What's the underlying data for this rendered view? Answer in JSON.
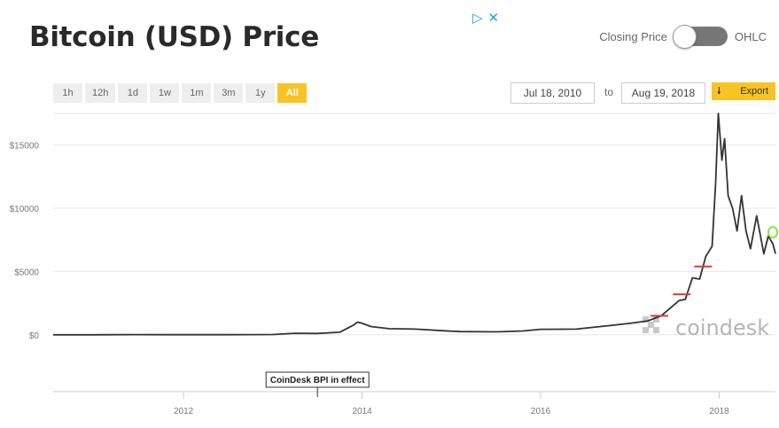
{
  "header": {
    "title": "Bitcoin (USD) Price",
    "closing_label": "Closing Price",
    "ohlc_label": "OHLC"
  },
  "ad": {
    "play_icon": "adchoices-play-icon",
    "close_icon": "close-icon",
    "play_glyph": "▷",
    "close_glyph": "✕"
  },
  "range_buttons": [
    "1h",
    "12h",
    "1d",
    "1w",
    "1m",
    "3m",
    "1y",
    "All"
  ],
  "active_range": "All",
  "date_range": {
    "from": "Jul 18, 2010",
    "to_label": "to",
    "to": "Aug 19, 2018"
  },
  "export": {
    "label": "Export",
    "icon": "download-arrow-icon",
    "glyph": "🠗"
  },
  "watermark": "coindesk",
  "colors": {
    "accent": "#f7c325",
    "line": "#333333",
    "marker": "#e53935",
    "highlight": "#8fe04f"
  },
  "chart_data": {
    "type": "line",
    "title": "Bitcoin (USD) Price",
    "xlabel": "",
    "ylabel": "",
    "xlim": [
      2010.54,
      2018.63
    ],
    "ylim": [
      -4500,
      17500
    ],
    "y_ticks": [
      0,
      5000,
      10000,
      15000
    ],
    "y_tick_labels": [
      "$0",
      "$5000",
      "$10000",
      "$15000"
    ],
    "x_ticks": [
      2012,
      2014,
      2016,
      2018
    ],
    "x_tick_labels": [
      "2012",
      "2014",
      "2016",
      "2018"
    ],
    "grid": true,
    "legend": "none",
    "series": [
      {
        "x": [
          2010.54,
          2011.0,
          2011.45,
          2011.8,
          2012.5,
          2013.0,
          2013.25,
          2013.5,
          2013.75,
          2013.9,
          2013.95,
          2014.0,
          2014.1,
          2014.3,
          2014.6,
          2014.9,
          2015.1,
          2015.5,
          2015.8,
          2016.0,
          2016.4,
          2016.8,
          2017.0,
          2017.2,
          2017.35,
          2017.45,
          2017.55,
          2017.62,
          2017.7,
          2017.78,
          2017.85,
          2017.92,
          2017.96,
          2017.99,
          2018.03,
          2018.06,
          2018.1,
          2018.15,
          2018.2,
          2018.25,
          2018.3,
          2018.35,
          2018.42,
          2018.5,
          2018.55,
          2018.6,
          2018.63
        ],
        "values": [
          0,
          1,
          15,
          5,
          8,
          20,
          120,
          100,
          200,
          750,
          1000,
          900,
          650,
          480,
          450,
          320,
          250,
          230,
          300,
          430,
          450,
          750,
          900,
          1100,
          1500,
          2100,
          2700,
          2800,
          4500,
          4400,
          6200,
          7000,
          12000,
          17500,
          13800,
          15500,
          11000,
          10000,
          8200,
          11000,
          8200,
          6800,
          9400,
          6400,
          7800,
          7200,
          6400
        ]
      }
    ],
    "markers": [
      {
        "type": "red-segment",
        "x": 2017.33,
        "value": 1500
      },
      {
        "type": "red-segment",
        "x": 2017.58,
        "value": 3200
      },
      {
        "type": "red-segment",
        "x": 2017.82,
        "value": 5400
      },
      {
        "type": "highlight-circle",
        "x": 2018.6,
        "value": 8100
      }
    ],
    "annotations": [
      {
        "text": "CoinDesk BPI in effect",
        "x": 2013.5
      }
    ]
  }
}
